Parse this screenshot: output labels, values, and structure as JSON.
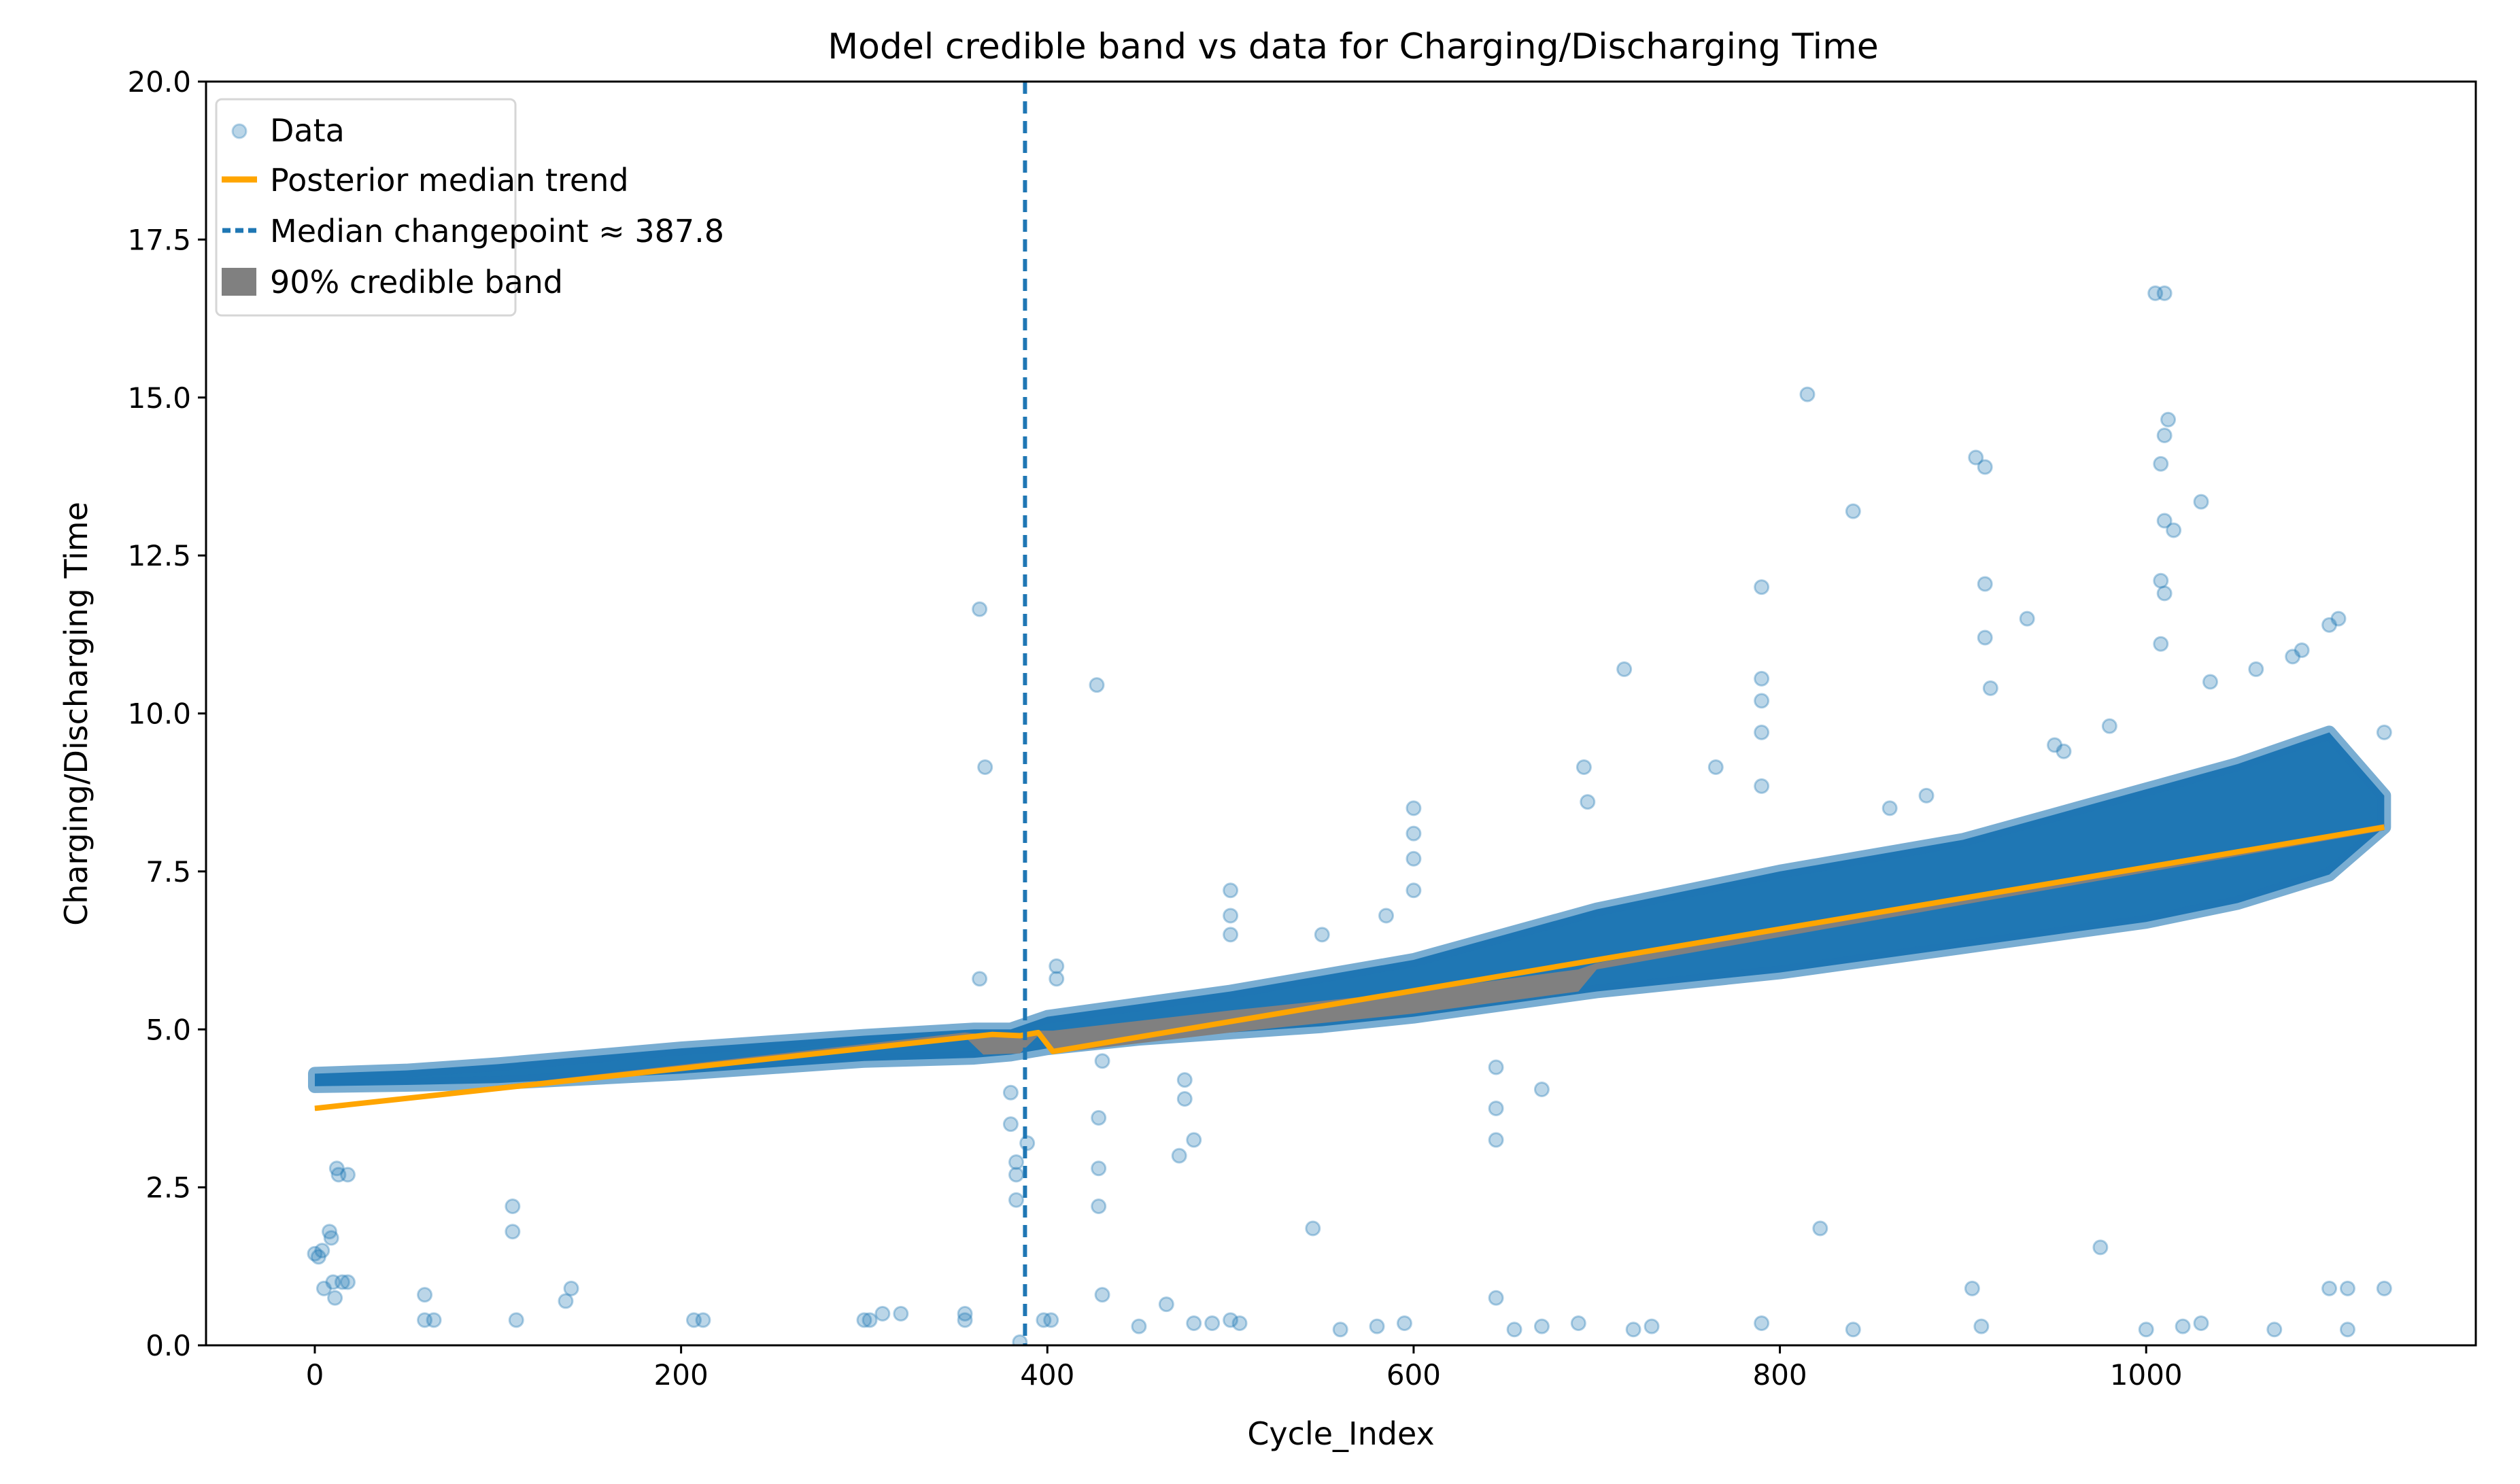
{
  "chart_data": {
    "type": "scatter",
    "title": "Model credible band vs data for Charging/Discharging Time",
    "xlabel": "Cycle_Index",
    "ylabel": "Charging/Discharging Time",
    "xlim": [
      -59.4,
      1180
    ],
    "ylim": [
      0,
      20
    ],
    "xticks": [
      0,
      200,
      400,
      600,
      800,
      1000
    ],
    "xtick_labels": [
      "0",
      "200",
      "400",
      "600",
      "800",
      "1000"
    ],
    "yticks": [
      0,
      2.5,
      5,
      7.5,
      10,
      12.5,
      15,
      17.5,
      20
    ],
    "ytick_labels": [
      "0.0",
      "2.5",
      "5.0",
      "7.5",
      "10.0",
      "12.5",
      "15.0",
      "17.5",
      "20.0"
    ],
    "grid": false,
    "legend_position": "top-left",
    "legend": [
      {
        "label": "Data",
        "kind": "marker",
        "color": "#1f77b4"
      },
      {
        "label": "Posterior median trend",
        "kind": "line",
        "color": "#ffa500"
      },
      {
        "label": "Median changepoint ≈ 387.8",
        "kind": "dashed",
        "color": "#1f77b4"
      },
      {
        "label": "90% credible band",
        "kind": "patch",
        "color": "#808080"
      }
    ],
    "data_color": "#1f77b4",
    "data_dense_region": {
      "x": [
        0,
        50,
        100,
        200,
        300,
        360,
        380,
        400,
        450,
        500,
        550,
        600,
        650,
        700,
        750,
        800,
        850,
        900,
        950,
        1000,
        1050,
        1100,
        1130
      ],
      "lower": [
        4.1,
        4.12,
        4.15,
        4.3,
        4.5,
        4.55,
        4.6,
        4.7,
        4.85,
        4.95,
        5.05,
        5.2,
        5.4,
        5.6,
        5.75,
        5.9,
        6.1,
        6.3,
        6.5,
        6.7,
        7.0,
        7.45,
        8.2
      ],
      "upper": [
        4.3,
        4.35,
        4.45,
        4.7,
        4.9,
        5.0,
        5.0,
        5.2,
        5.4,
        5.6,
        5.85,
        6.1,
        6.5,
        6.9,
        7.2,
        7.5,
        7.75,
        8.0,
        8.4,
        8.8,
        9.2,
        9.7,
        8.7
      ]
    },
    "data_outliers": [
      [
        0,
        1.45
      ],
      [
        2,
        1.4
      ],
      [
        4,
        1.5
      ],
      [
        5,
        0.9
      ],
      [
        8,
        1.8
      ],
      [
        9,
        1.7
      ],
      [
        10,
        1.0
      ],
      [
        12,
        2.8
      ],
      [
        13,
        2.7
      ],
      [
        18,
        2.7
      ],
      [
        15,
        1.0
      ],
      [
        11,
        0.75
      ],
      [
        18,
        1.0
      ],
      [
        60,
        0.8
      ],
      [
        60,
        0.4
      ],
      [
        65,
        0.4
      ],
      [
        110,
        0.4
      ],
      [
        108,
        2.2
      ],
      [
        108,
        1.8
      ],
      [
        140,
        0.9
      ],
      [
        137,
        0.7
      ],
      [
        207,
        0.4
      ],
      [
        212,
        0.4
      ],
      [
        300,
        0.4
      ],
      [
        303,
        0.4
      ],
      [
        310,
        0.5
      ],
      [
        320,
        0.5
      ],
      [
        355,
        0.5
      ],
      [
        355,
        0.4
      ],
      [
        363,
        5.8
      ],
      [
        363,
        11.65
      ],
      [
        366,
        9.15
      ],
      [
        380,
        4.0
      ],
      [
        380,
        3.5
      ],
      [
        383,
        2.9
      ],
      [
        383,
        2.7
      ],
      [
        383,
        2.3
      ],
      [
        385,
        0.05
      ],
      [
        389,
        3.2
      ],
      [
        398,
        0.4
      ],
      [
        402,
        0.4
      ],
      [
        405,
        6.0
      ],
      [
        405,
        5.8
      ],
      [
        427,
        10.45
      ],
      [
        428,
        3.6
      ],
      [
        428,
        2.8
      ],
      [
        428,
        2.2
      ],
      [
        430,
        4.5
      ],
      [
        430,
        0.8
      ],
      [
        450,
        0.3
      ],
      [
        465,
        0.65
      ],
      [
        472,
        3.0
      ],
      [
        475,
        4.2
      ],
      [
        475,
        3.9
      ],
      [
        480,
        3.25
      ],
      [
        480,
        0.35
      ],
      [
        490,
        0.35
      ],
      [
        500,
        0.4
      ],
      [
        505,
        0.35
      ],
      [
        500,
        7.2
      ],
      [
        500,
        6.8
      ],
      [
        500,
        6.5
      ],
      [
        545,
        1.85
      ],
      [
        550,
        6.5
      ],
      [
        560,
        0.25
      ],
      [
        580,
        0.3
      ],
      [
        585,
        6.8
      ],
      [
        595,
        0.35
      ],
      [
        600,
        8.5
      ],
      [
        600,
        8.1
      ],
      [
        600,
        7.7
      ],
      [
        600,
        7.2
      ],
      [
        645,
        4.4
      ],
      [
        645,
        3.75
      ],
      [
        645,
        3.25
      ],
      [
        645,
        0.75
      ],
      [
        655,
        0.25
      ],
      [
        670,
        4.05
      ],
      [
        670,
        0.3
      ],
      [
        690,
        0.35
      ],
      [
        693,
        9.15
      ],
      [
        695,
        8.6
      ],
      [
        715,
        10.7
      ],
      [
        720,
        0.25
      ],
      [
        730,
        0.3
      ],
      [
        765,
        9.15
      ],
      [
        790,
        12.0
      ],
      [
        790,
        10.55
      ],
      [
        790,
        10.2
      ],
      [
        790,
        9.7
      ],
      [
        790,
        8.85
      ],
      [
        790,
        0.35
      ],
      [
        815,
        15.05
      ],
      [
        822,
        1.85
      ],
      [
        840,
        13.2
      ],
      [
        840,
        0.25
      ],
      [
        860,
        8.5
      ],
      [
        880,
        8.7
      ],
      [
        905,
        0.9
      ],
      [
        907,
        14.05
      ],
      [
        910,
        0.3
      ],
      [
        912,
        13.9
      ],
      [
        912,
        12.05
      ],
      [
        912,
        11.2
      ],
      [
        915,
        10.4
      ],
      [
        935,
        11.5
      ],
      [
        950,
        9.5
      ],
      [
        955,
        9.4
      ],
      [
        975,
        1.55
      ],
      [
        980,
        9.8
      ],
      [
        1000,
        0.25
      ],
      [
        1005,
        16.65
      ],
      [
        1010,
        16.65
      ],
      [
        1010,
        14.4
      ],
      [
        1012,
        14.65
      ],
      [
        1008,
        13.95
      ],
      [
        1010,
        13.05
      ],
      [
        1015,
        12.9
      ],
      [
        1008,
        12.1
      ],
      [
        1010,
        11.9
      ],
      [
        1008,
        11.1
      ],
      [
        1020,
        0.3
      ],
      [
        1030,
        13.35
      ],
      [
        1030,
        0.35
      ],
      [
        1035,
        10.5
      ],
      [
        1060,
        10.7
      ],
      [
        1070,
        0.25
      ],
      [
        1080,
        10.9
      ],
      [
        1085,
        11.0
      ],
      [
        1100,
        11.4
      ],
      [
        1105,
        11.5
      ],
      [
        1100,
        0.9
      ],
      [
        1110,
        0.9
      ],
      [
        1110,
        0.25
      ],
      [
        1130,
        0.9
      ],
      [
        1130,
        9.7
      ]
    ],
    "trend": {
      "color": "#ffa500",
      "x": [
        0,
        370,
        385,
        395,
        403,
        1130
      ],
      "y": [
        3.75,
        4.92,
        4.9,
        4.95,
        4.65,
        8.2
      ]
    },
    "credible_band": {
      "color": "#808080",
      "x": [
        0,
        355,
        365,
        385,
        395,
        403,
        500,
        600,
        690,
        700,
        1130
      ],
      "lower": [
        3.72,
        4.88,
        4.6,
        4.62,
        4.9,
        4.62,
        4.95,
        5.25,
        5.6,
        5.95,
        8.15
      ],
      "upper": [
        3.78,
        4.95,
        4.92,
        4.92,
        4.98,
        4.98,
        5.3,
        5.6,
        5.95,
        6.05,
        8.25
      ]
    },
    "changepoint": {
      "x": 387.8,
      "color": "#1f77b4"
    }
  }
}
